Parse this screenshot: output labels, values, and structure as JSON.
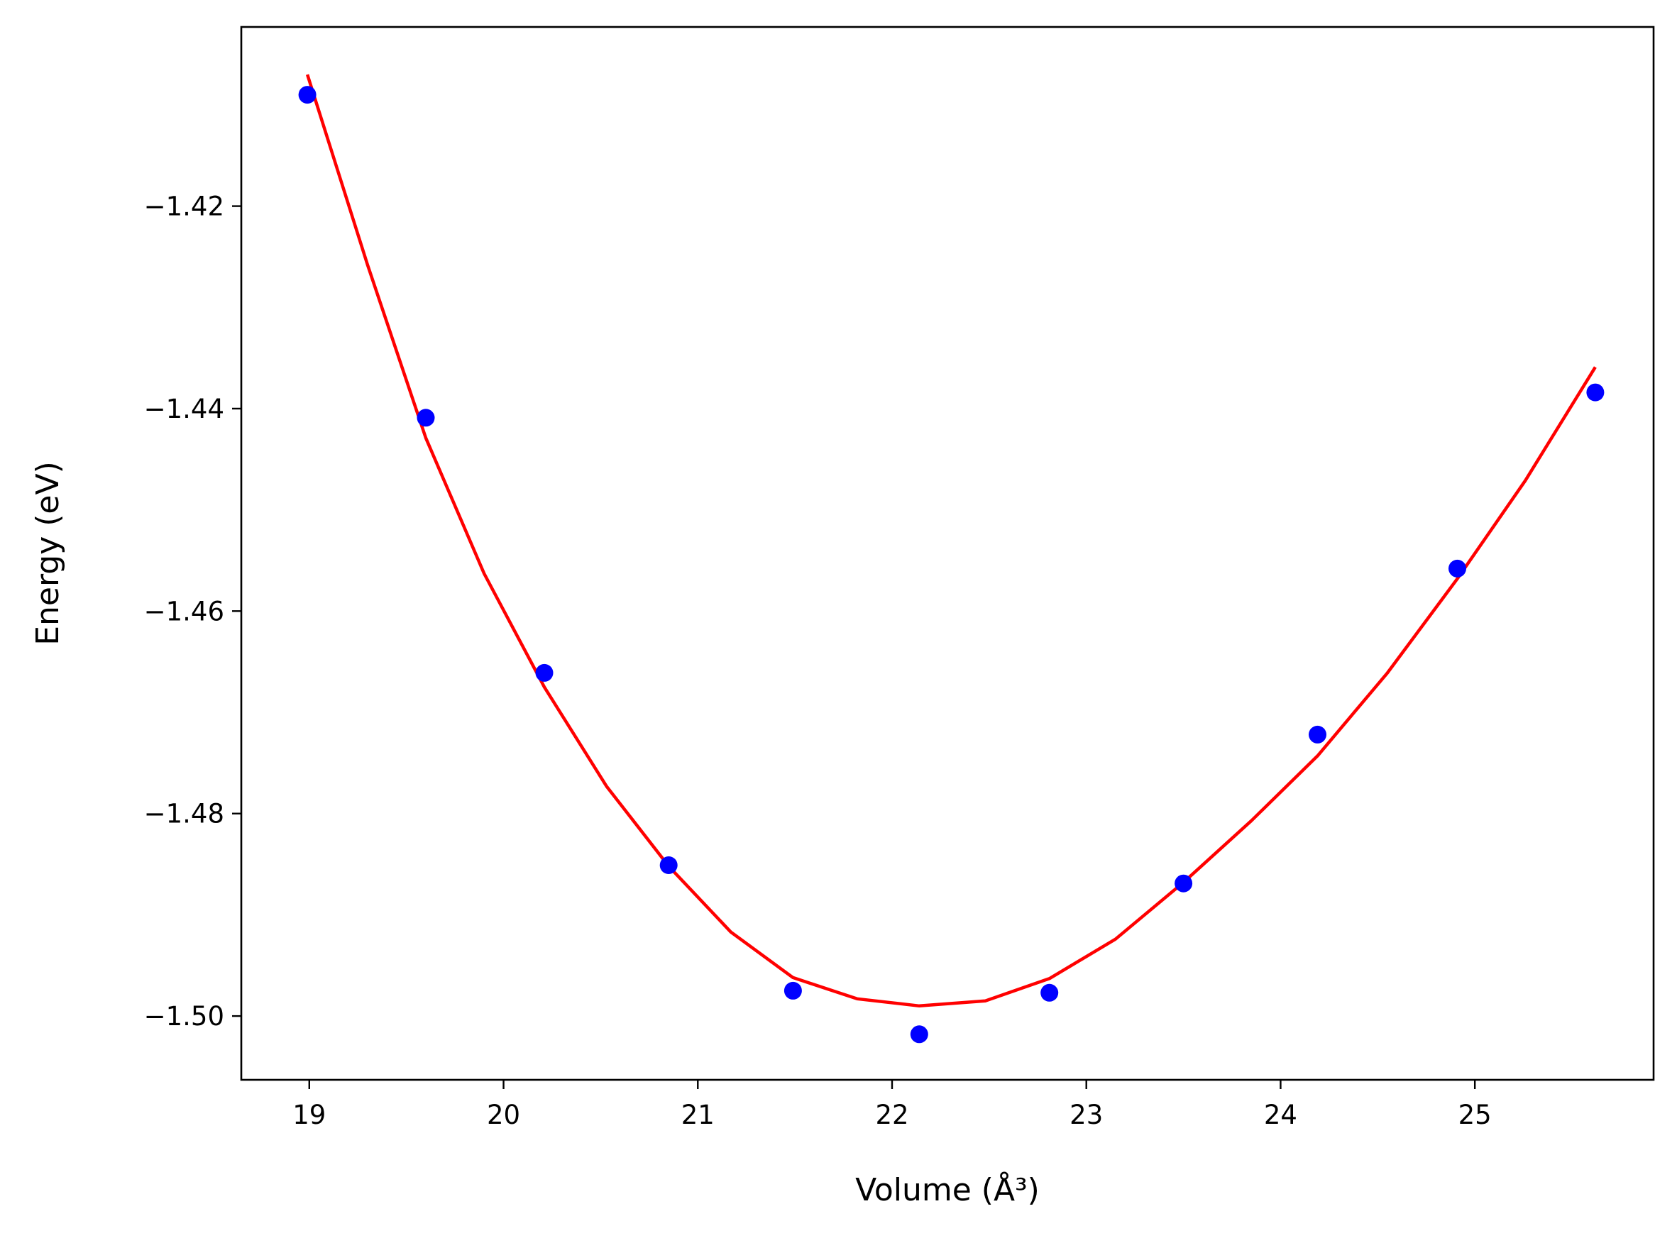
{
  "chart_data": {
    "type": "scatter",
    "title": "",
    "xlabel": "Volume (Å³)",
    "ylabel": "Energy (eV)",
    "xlim": [
      18.65,
      25.92
    ],
    "ylim": [
      -1.5063,
      -1.4023
    ],
    "grid": false,
    "x_ticks": [
      19,
      20,
      21,
      22,
      23,
      24,
      25
    ],
    "y_ticks": [
      -1.42,
      -1.44,
      -1.46,
      -1.48,
      -1.5
    ],
    "x_tick_labels": [
      "19",
      "20",
      "21",
      "22",
      "23",
      "24",
      "25"
    ],
    "y_tick_labels": [
      "−1.42",
      "−1.44",
      "−1.46",
      "−1.48",
      "−1.50"
    ],
    "series": [
      {
        "kind": "points",
        "color": "#0000ff",
        "x": [
          18.99,
          19.6,
          20.21,
          20.85,
          21.49,
          22.14,
          22.81,
          23.5,
          24.19,
          24.91,
          25.62
        ],
        "y": [
          -1.409,
          -1.4409,
          -1.4661,
          -1.4851,
          -1.4975,
          -1.5018,
          -1.4977,
          -1.4869,
          -1.4722,
          -1.4558,
          -1.4384
        ]
      },
      {
        "kind": "fit-curve",
        "color": "#ff0000",
        "x": [
          18.99,
          19.3,
          19.6,
          19.9,
          20.21,
          20.53,
          20.85,
          21.17,
          21.49,
          21.82,
          22.14,
          22.48,
          22.81,
          23.15,
          23.5,
          23.85,
          24.19,
          24.55,
          24.91,
          25.26,
          25.62
        ],
        "y": [
          -1.407,
          -1.4258,
          -1.4429,
          -1.4563,
          -1.4675,
          -1.4773,
          -1.4852,
          -1.4917,
          -1.4962,
          -1.4983,
          -1.499,
          -1.4985,
          -1.4963,
          -1.4924,
          -1.4868,
          -1.4807,
          -1.4743,
          -1.4661,
          -1.4568,
          -1.4471,
          -1.4359
        ]
      }
    ]
  }
}
